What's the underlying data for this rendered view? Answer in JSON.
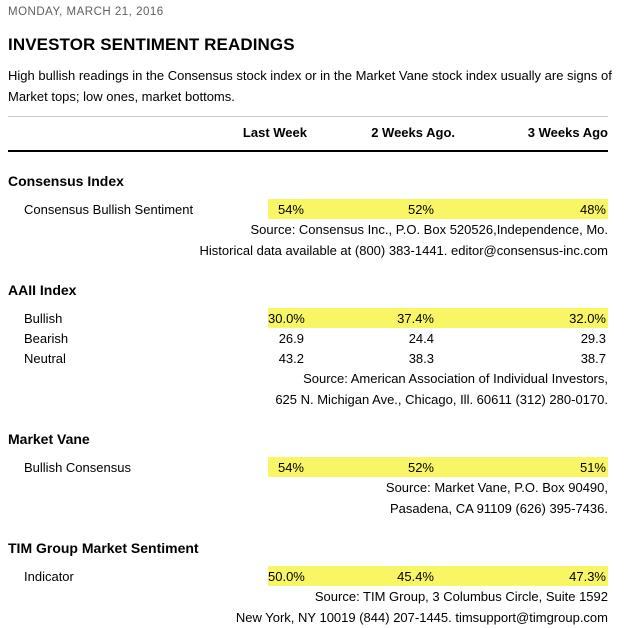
{
  "page": {
    "date": "MONDAY, MARCH 21, 2016",
    "title": "INVESTOR SENTIMENT READINGS",
    "description": "High bullish readings in the Consensus stock index or in the Market Vane stock index usually are signs of Market tops; low ones, market bottoms."
  },
  "table": {
    "highlight_color": "#f9f666",
    "column_headers": [
      "Last Week",
      "2 Weeks Ago.",
      "3 Weeks Ago"
    ],
    "sections": [
      {
        "name": "Consensus Index",
        "rows": [
          {
            "label": "Consensus Bullish Sentiment",
            "values": [
              "54%",
              "52%",
              "48%"
            ],
            "highlight": true
          }
        ],
        "source_lines": [
          "Source: Consensus Inc., P.O. Box 520526,Independence, Mo.",
          "Historical data available at (800) 383-1441. editor@consensus-inc.com"
        ]
      },
      {
        "name": "AAII Index",
        "rows": [
          {
            "label": "Bullish",
            "values": [
              "30.0%",
              "37.4%",
              "32.0%"
            ],
            "highlight": true
          },
          {
            "label": "Bearish",
            "values": [
              "26.9",
              "24.4",
              "29.3"
            ],
            "highlight": false
          },
          {
            "label": "Neutral",
            "values": [
              "43.2",
              "38.3",
              "38.7"
            ],
            "highlight": false
          }
        ],
        "source_lines": [
          "Source: American Association of Individual Investors,",
          "625 N. Michigan Ave., Chicago, Ill. 60611 (312) 280-0170."
        ]
      },
      {
        "name": "Market Vane",
        "rows": [
          {
            "label": "Bullish Consensus",
            "values": [
              "54%",
              "52%",
              "51%"
            ],
            "highlight": true
          }
        ],
        "source_lines": [
          "Source: Market Vane, P.O. Box 90490,",
          "Pasadena, CA 91109 (626) 395-7436."
        ]
      },
      {
        "name": "TIM Group Market Sentiment",
        "rows": [
          {
            "label": "Indicator",
            "values": [
              "50.0%",
              "45.4%",
              "47.3%"
            ],
            "highlight": true
          }
        ],
        "source_lines": [
          "Source: TIM Group, 3 Columbus Circle, Suite 1592",
          "New York, NY 10019 (844) 207-1445. timsupport@timgroup.com"
        ]
      }
    ]
  }
}
